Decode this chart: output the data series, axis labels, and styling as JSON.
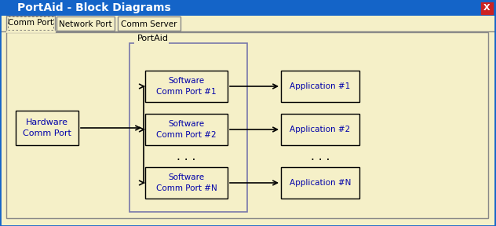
{
  "title": "PortAid - Block Diagrams",
  "title_bar_color": "#1464c8",
  "title_text_color": "#ffffff",
  "bg_color": "#f5f0c8",
  "tabs": [
    "Comm Port",
    "Network Port",
    "Comm Server"
  ],
  "portaid_label": "PortAid",
  "hw_box_label": "Hardware\nComm Port",
  "sw_boxes": [
    "Software\nComm Port #1",
    "Software\nComm Port #2",
    "Software\nComm Port #N"
  ],
  "app_boxes": [
    "Application #1",
    "Application #2",
    "Application #N"
  ],
  "box_bg": "#f5f0c8",
  "box_border": "#000000",
  "box_text_color": "#0000aa",
  "arrow_color": "#000000",
  "dots_color": "#000000",
  "close_btn_color": "#cc2222",
  "window_border": "#888888",
  "portaid_border_color": "#7777aa"
}
